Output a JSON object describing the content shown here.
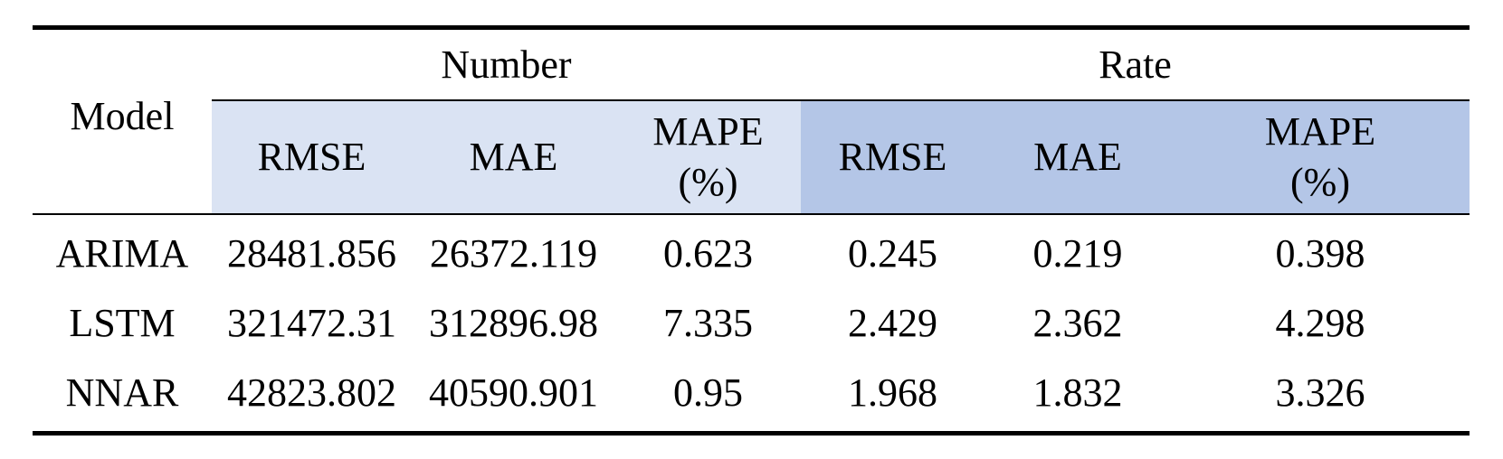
{
  "table": {
    "model_header": "Model",
    "groups": [
      {
        "label": "Number"
      },
      {
        "label": "Rate"
      }
    ],
    "metrics": {
      "number": [
        {
          "label": "RMSE"
        },
        {
          "label": "MAE"
        },
        {
          "label": "MAPE",
          "label2": "(%)"
        }
      ],
      "rate": [
        {
          "label": "RMSE"
        },
        {
          "label": "MAE"
        },
        {
          "label": "MAPE",
          "label2": "(%)"
        }
      ]
    },
    "rows": [
      {
        "model": "ARIMA",
        "values": [
          "28481.856",
          "26372.119",
          "0.623",
          "0.245",
          "0.219",
          "0.398"
        ]
      },
      {
        "model": "LSTM",
        "values": [
          "321472.31",
          "312896.98",
          "7.335",
          "2.429",
          "2.362",
          "4.298"
        ]
      },
      {
        "model": "NNAR",
        "values": [
          "42823.802",
          "40590.901",
          "0.95",
          "1.968",
          "1.832",
          "3.326"
        ]
      }
    ],
    "colors": {
      "number_header_bg": "#dae3f3",
      "rate_header_bg": "#b4c6e7"
    }
  }
}
